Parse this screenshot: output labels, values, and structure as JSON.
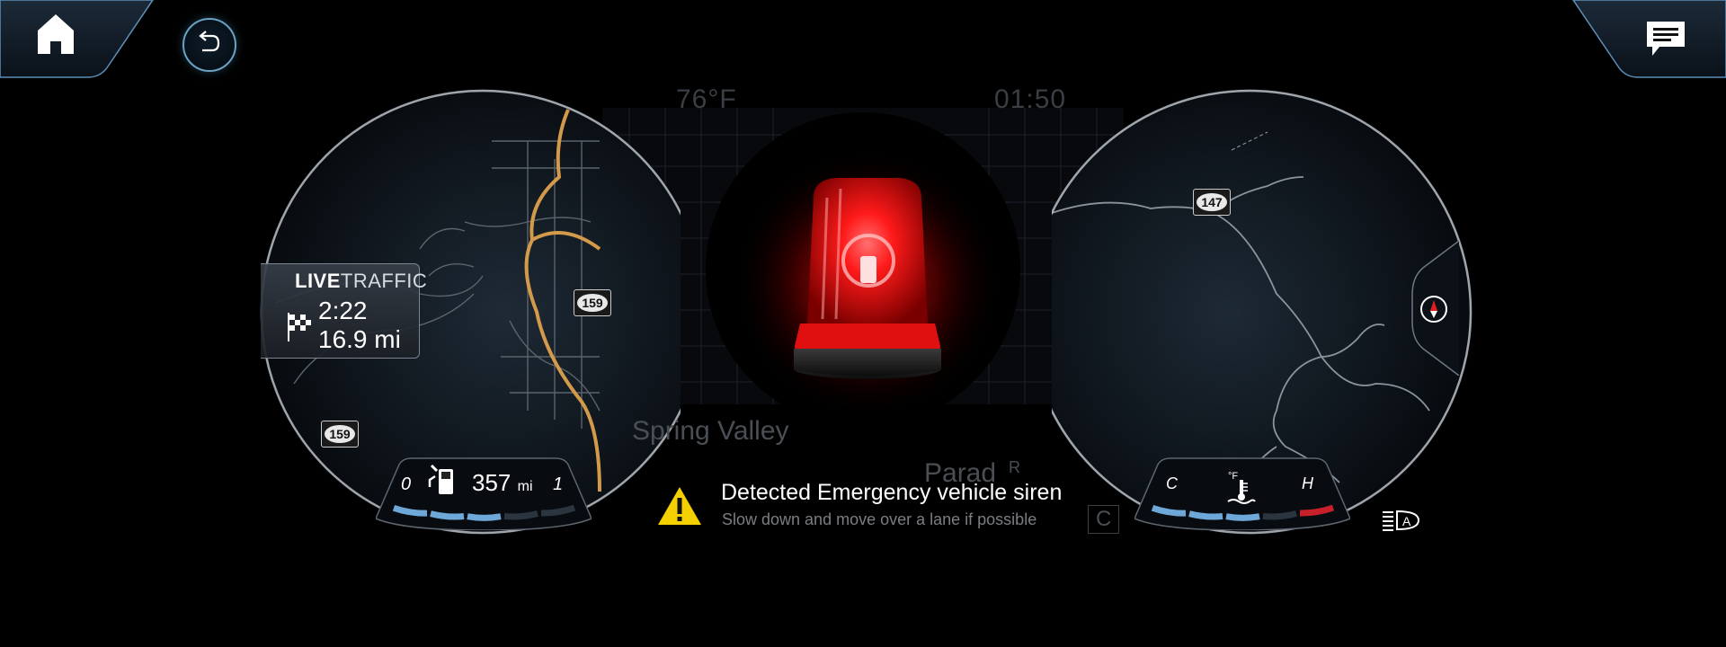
{
  "header": {
    "home_icon": "home-icon",
    "back_icon": "back-arrow-icon",
    "messages_icon": "message-icon"
  },
  "top_bar": {
    "temperature": "76°F",
    "clock": "01:50"
  },
  "live_traffic": {
    "label_bold": "LIVE",
    "label_rest": "TRAFFIC",
    "eta": "2:22",
    "distance": "16.9 mi",
    "icon": "checkered-flag-icon"
  },
  "map": {
    "road_shields": [
      "159",
      "159",
      "147"
    ],
    "place_labels": [
      "Spring Valley",
      "Parad",
      "R",
      "C"
    ]
  },
  "fuel_gauge": {
    "empty_label": "0",
    "full_label": "1",
    "range_value": "357",
    "range_unit": "mi",
    "icon": "fuel-pump-icon",
    "level": 0.62
  },
  "temp_gauge": {
    "cold_label": "C",
    "hot_label": "H",
    "unit_label": "°F",
    "icon": "coolant-temperature-icon",
    "level": 0.55
  },
  "alert": {
    "icon": "warning-triangle-icon",
    "title": "Detected Emergency vehicle siren",
    "subtitle": "Slow down and move over a lane if possible"
  },
  "siren_icon": "emergency-siren-icon",
  "compass_icon": "compass-icon",
  "auto_lights_icon": "auto-headlight-icon",
  "colors": {
    "accent_blue": "#6ea8d8",
    "map_route": "#d39a4a",
    "siren_red": "#ff1a1a",
    "warning_yellow": "#f5d000",
    "hot_red": "#c8202a"
  }
}
